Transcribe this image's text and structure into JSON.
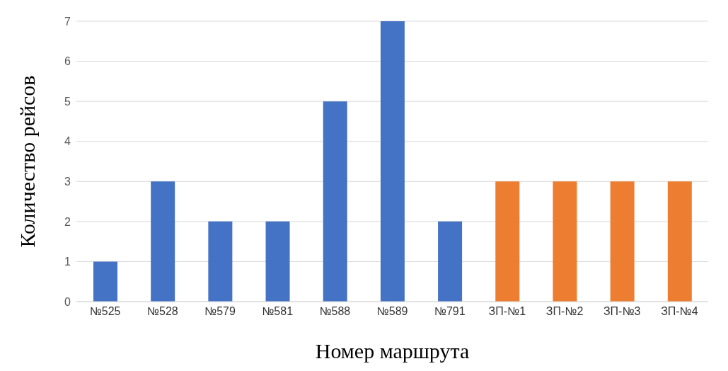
{
  "chart_data": {
    "type": "bar",
    "xlabel": "Номер маршрута",
    "ylabel": "Количество рейсов",
    "categories": [
      "№525",
      "№528",
      "№579",
      "№581",
      "№588",
      "№589",
      "№791",
      "ЗП-№1",
      "ЗП-№2",
      "ЗП-№3",
      "ЗП-№4"
    ],
    "values": [
      1,
      3,
      2,
      2,
      5,
      7,
      2,
      3,
      3,
      3,
      3
    ],
    "colors": [
      "#4472c4",
      "#4472c4",
      "#4472c4",
      "#4472c4",
      "#4472c4",
      "#4472c4",
      "#4472c4",
      "#ed7d31",
      "#ed7d31",
      "#ed7d31",
      "#ed7d31"
    ],
    "ylim": [
      0,
      7
    ],
    "yticks": [
      0,
      1,
      2,
      3,
      4,
      5,
      6,
      7
    ],
    "grid": "y"
  }
}
